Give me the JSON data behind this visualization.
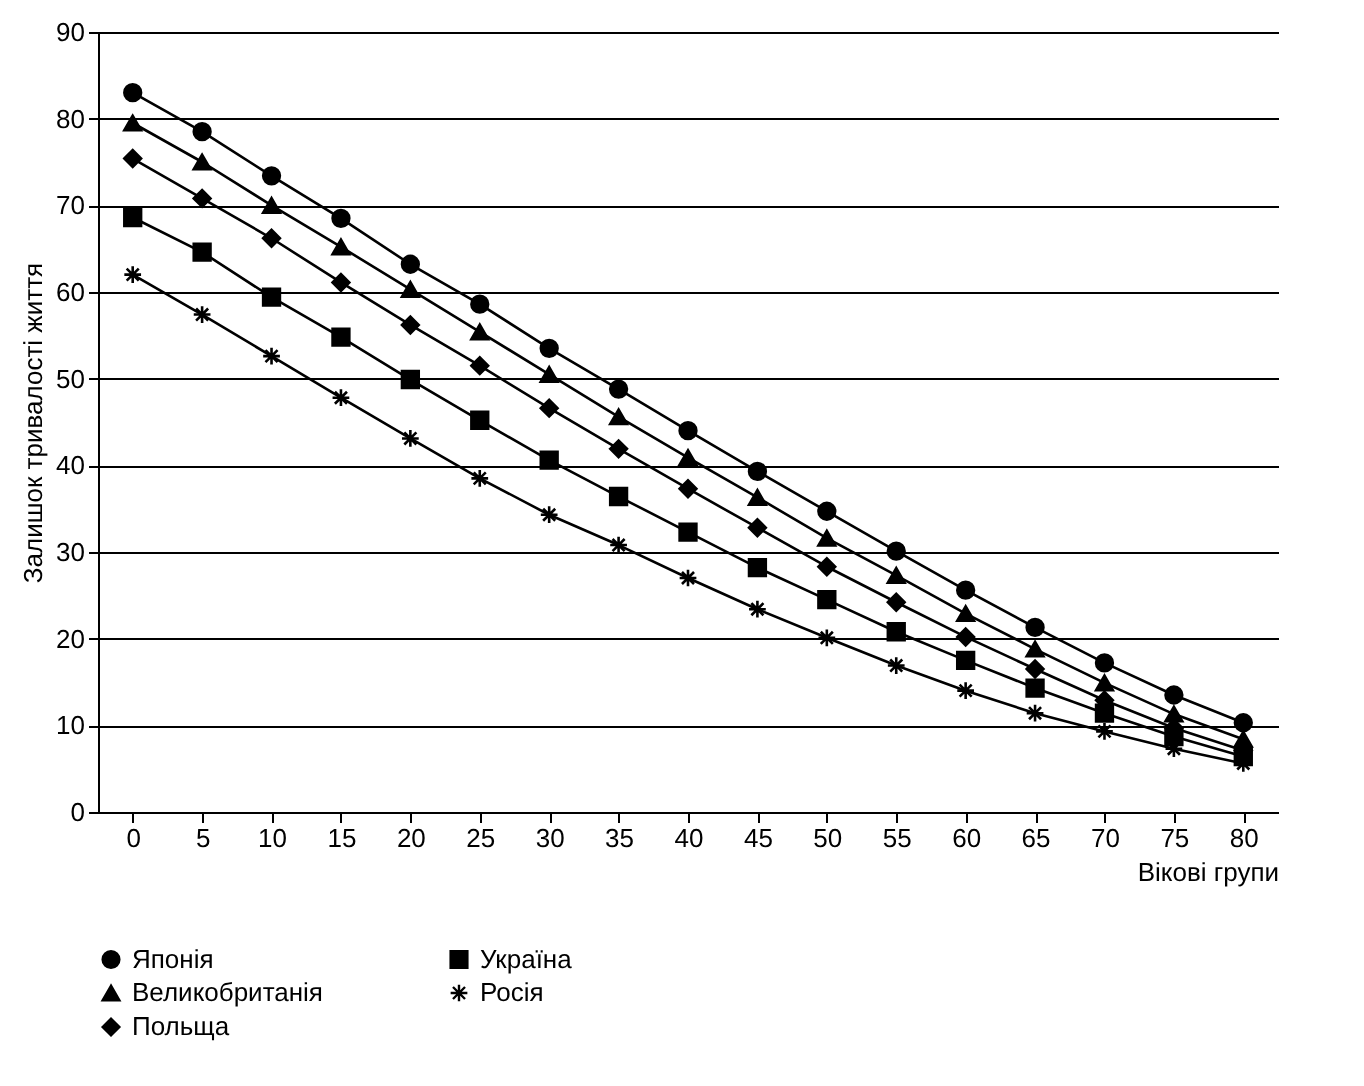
{
  "chart_data": {
    "type": "line",
    "xlabel": "Вікові групи",
    "ylabel": "Залишок тривалості життя",
    "categories": [
      "0",
      "5",
      "10",
      "15",
      "20",
      "25",
      "30",
      "35",
      "40",
      "45",
      "50",
      "55",
      "60",
      "65",
      "70",
      "75",
      "80"
    ],
    "series": [
      {
        "name": "Японія",
        "color": "#000000",
        "marker": "circle",
        "values": [
          83,
          78.5,
          73.4,
          68.5,
          63.2,
          58.6,
          53.5,
          48.8,
          44,
          39.3,
          34.7,
          30.1,
          25.6,
          21.3,
          17.2,
          13.5,
          10.3
        ]
      },
      {
        "name": "Україна",
        "color": "#000000",
        "marker": "square",
        "values": [
          68.6,
          64.6,
          59.4,
          54.8,
          49.9,
          45.2,
          40.6,
          36.4,
          32.3,
          28.2,
          24.5,
          20.8,
          17.5,
          14.3,
          11.4,
          8.7,
          6.4
        ]
      },
      {
        "name": "Великобританія",
        "color": "#000000",
        "marker": "triangle",
        "values": [
          79.5,
          75,
          70,
          65.2,
          60.3,
          55.4,
          50.5,
          45.6,
          40.9,
          36.3,
          31.6,
          27.3,
          22.9,
          18.8,
          14.9,
          11.3,
          8.4
        ]
      },
      {
        "name": "Росія",
        "color": "#000000",
        "marker": "cross",
        "values": [
          62,
          57.4,
          52.6,
          47.8,
          43.1,
          38.5,
          34.3,
          30.8,
          27,
          23.4,
          20.1,
          16.9,
          14,
          11.4,
          9.3,
          7.3,
          5.6
        ]
      },
      {
        "name": "Польща",
        "color": "#000000",
        "marker": "diamond",
        "values": [
          75.4,
          70.8,
          66.2,
          61.1,
          56.2,
          51.5,
          46.6,
          41.9,
          37.3,
          32.8,
          28.3,
          24.2,
          20.2,
          16.5,
          12.9,
          9.7,
          7.1
        ]
      }
    ],
    "ylim": [
      0,
      90
    ],
    "yticks": [
      0,
      10,
      20,
      30,
      40,
      50,
      60,
      70,
      80,
      90
    ],
    "grid": "y",
    "legend": "bottom",
    "line_style": "solid"
  }
}
